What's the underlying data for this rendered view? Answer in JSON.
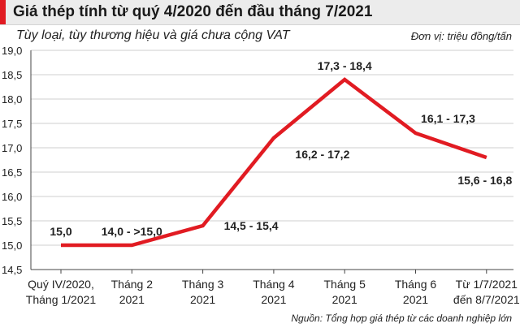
{
  "header": {
    "title": "Giá thép tính từ quý 4/2020 đến đầu tháng 7/2021",
    "subtitle": "Tùy loại, tùy thương hiệu và giá chưa cộng VAT",
    "unit": "Đơn vị: triệu đồng/tấn",
    "source": "Nguồn: Tổng hợp giá thép từ các doanh nghiệp lớn"
  },
  "colors": {
    "line": "#e11b22",
    "accent": "#e11b22",
    "grid": "#cfcfcf",
    "title_bg": "#ececec"
  },
  "chart_data": {
    "type": "line",
    "title": "Giá thép tính từ quý 4/2020 đến đầu tháng 7/2021",
    "subtitle": "Tùy loại, tùy thương hiệu và giá chưa cộng VAT",
    "xlabel": "",
    "ylabel": "",
    "ylim": [
      14.5,
      19.0
    ],
    "yticks": [
      "14,5",
      "15,0",
      "15,5",
      "16,0",
      "16,5",
      "17,0",
      "17,5",
      "18,0",
      "18,5",
      "19,0"
    ],
    "ytick_values": [
      14.5,
      15.0,
      15.5,
      16.0,
      16.5,
      17.0,
      17.5,
      18.0,
      18.5,
      19.0
    ],
    "grid": true,
    "categories": [
      [
        "Quý IV/2020,",
        "Tháng 1/2021"
      ],
      [
        "Tháng 2",
        "2021"
      ],
      [
        "Tháng 3",
        "2021"
      ],
      [
        "Tháng 4",
        "2021"
      ],
      [
        "Tháng 5",
        "2021"
      ],
      [
        "Tháng 6",
        "2021"
      ],
      [
        "Từ 1/7/2021",
        "đến 8/7/2021"
      ]
    ],
    "values": [
      15.0,
      15.0,
      15.4,
      17.2,
      18.4,
      17.3,
      16.8
    ],
    "data_labels": [
      "15,0",
      "14,0 - >15,0",
      "14,5 - 15,4",
      "16,2 - 17,2",
      "17,3 - 18,4",
      "16,1 - 17,3",
      "15,6 - 16,8"
    ],
    "label_position": [
      "above",
      "above",
      "right",
      "below",
      "above",
      "above",
      "below"
    ]
  }
}
